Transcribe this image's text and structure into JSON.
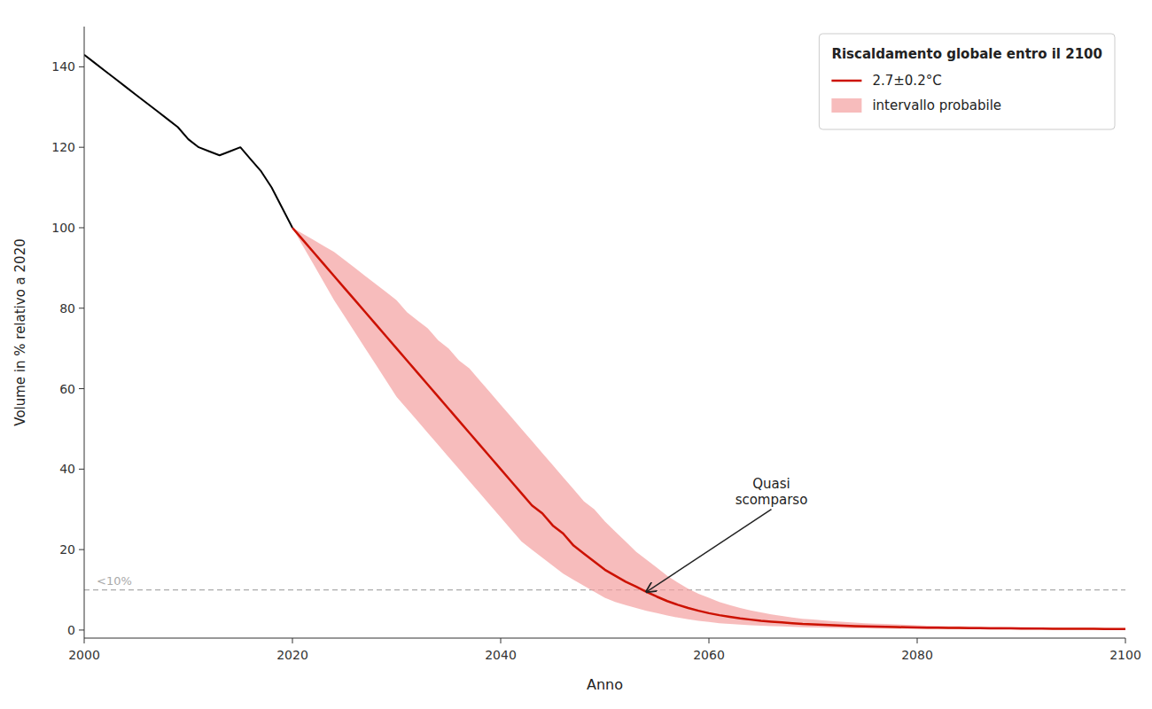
{
  "chart_data": {
    "type": "line",
    "xlabel": "Anno",
    "ylabel": "Volume in % relativo a 2020",
    "legend_title": "Riscaldamento globale entro il 2100",
    "legend": "upper right",
    "grid": false,
    "xlim": [
      2000,
      2100
    ],
    "ylim": [
      -2,
      150
    ],
    "xticks": [
      2000,
      2020,
      2040,
      2060,
      2080,
      2100
    ],
    "yticks": [
      0,
      20,
      40,
      60,
      80,
      100,
      120,
      140
    ],
    "threshold": {
      "value": 10,
      "label": "<10%",
      "color": "#aaaaaa",
      "line_style": "dashed"
    },
    "annotations": [
      {
        "text": "Quasi\nscomparso",
        "x": 2054,
        "y": 9.5,
        "text_x": 2066,
        "text_y": 30
      }
    ],
    "series": [
      {
        "type": "line",
        "color": "#000000",
        "x": [
          2000,
          2001,
          2002,
          2003,
          2004,
          2005,
          2006,
          2007,
          2008,
          2009,
          2010,
          2011,
          2012,
          2013,
          2014,
          2015,
          2016,
          2017,
          2018,
          2019,
          2020
        ],
        "values": [
          143,
          141,
          139,
          137,
          135,
          133,
          131,
          129,
          127,
          125,
          122,
          120,
          119,
          118,
          119,
          120,
          117,
          114,
          110,
          105,
          100
        ]
      },
      {
        "type": "line",
        "name": "2.7±0.2°C",
        "color": "#cc1100",
        "x": [
          2020,
          2021,
          2022,
          2023,
          2024,
          2025,
          2026,
          2027,
          2028,
          2029,
          2030,
          2031,
          2032,
          2033,
          2034,
          2035,
          2036,
          2037,
          2038,
          2039,
          2040,
          2041,
          2042,
          2043,
          2044,
          2045,
          2046,
          2047,
          2048,
          2049,
          2050,
          2051,
          2052,
          2053,
          2054,
          2055,
          2056,
          2057,
          2058,
          2059,
          2060,
          2061,
          2062,
          2063,
          2064,
          2065,
          2066,
          2067,
          2068,
          2069,
          2070,
          2071,
          2072,
          2073,
          2074,
          2075,
          2076,
          2077,
          2078,
          2079,
          2080,
          2081,
          2082,
          2083,
          2084,
          2085,
          2086,
          2087,
          2088,
          2089,
          2090,
          2091,
          2092,
          2093,
          2094,
          2095,
          2096,
          2097,
          2098,
          2099,
          2100
        ],
        "values": [
          100,
          97,
          94,
          91,
          88,
          85,
          82,
          79,
          76,
          73,
          70,
          67,
          64,
          61,
          58,
          55,
          52,
          49,
          46,
          43,
          40,
          37,
          34,
          31,
          29,
          26,
          24,
          21,
          19,
          17,
          15,
          13.5,
          12,
          10.8,
          9.5,
          8.3,
          7.2,
          6.3,
          5.5,
          4.8,
          4.2,
          3.7,
          3.3,
          2.9,
          2.6,
          2.3,
          2.1,
          1.9,
          1.7,
          1.5,
          1.4,
          1.3,
          1.2,
          1.1,
          1.0,
          0.9,
          0.85,
          0.8,
          0.75,
          0.7,
          0.65,
          0.6,
          0.57,
          0.54,
          0.51,
          0.49,
          0.47,
          0.45,
          0.43,
          0.41,
          0.39,
          0.37,
          0.35,
          0.33,
          0.32,
          0.31,
          0.3,
          0.29,
          0.28,
          0.27,
          0.26
        ]
      },
      {
        "type": "band",
        "name": "intervallo probabile",
        "color": "#f4a0a0",
        "x": [
          2020,
          2021,
          2022,
          2023,
          2024,
          2025,
          2026,
          2027,
          2028,
          2029,
          2030,
          2031,
          2032,
          2033,
          2034,
          2035,
          2036,
          2037,
          2038,
          2039,
          2040,
          2041,
          2042,
          2043,
          2044,
          2045,
          2046,
          2047,
          2048,
          2049,
          2050,
          2051,
          2052,
          2053,
          2054,
          2055,
          2056,
          2057,
          2058,
          2059,
          2060,
          2061,
          2062,
          2063,
          2064,
          2065,
          2066,
          2067,
          2068,
          2069,
          2070,
          2071,
          2072,
          2073,
          2074,
          2075,
          2076,
          2077,
          2078,
          2079,
          2080,
          2081,
          2082,
          2083,
          2084,
          2085,
          2086,
          2087,
          2088,
          2089,
          2090,
          2091,
          2092,
          2093,
          2094,
          2095,
          2096,
          2097,
          2098,
          2099,
          2100
        ],
        "upper": [
          100,
          98.5,
          97,
          95.5,
          94,
          92,
          90,
          88,
          86,
          84,
          82,
          79,
          77,
          75,
          72,
          70,
          67,
          65,
          62,
          59,
          56,
          53,
          50,
          47,
          44,
          41,
          38,
          35,
          32,
          30,
          27,
          24.5,
          22,
          19.5,
          17.5,
          15.5,
          13.5,
          11.8,
          10.3,
          9.0,
          8.0,
          7.0,
          6.2,
          5.5,
          4.9,
          4.4,
          3.9,
          3.5,
          3.1,
          2.8,
          2.6,
          2.4,
          2.2,
          2.0,
          1.85,
          1.7,
          1.6,
          1.5,
          1.4,
          1.3,
          1.2,
          1.1,
          1.05,
          1.0,
          0.95,
          0.9,
          0.87,
          0.83,
          0.8,
          0.77,
          0.73,
          0.7,
          0.67,
          0.64,
          0.61,
          0.59,
          0.57,
          0.54,
          0.52,
          0.5,
          0.48
        ],
        "lower": [
          100,
          95.5,
          91,
          86.5,
          82,
          78,
          74,
          70,
          66,
          62,
          58,
          55,
          52,
          49,
          46,
          43,
          40,
          37,
          34,
          31,
          28,
          25,
          22,
          20,
          18,
          16,
          14,
          12.5,
          11,
          9.5,
          8,
          7,
          6.2,
          5.5,
          4.8,
          4.2,
          3.6,
          3.1,
          2.7,
          2.3,
          2.0,
          1.7,
          1.5,
          1.35,
          1.2,
          1.1,
          1.0,
          0.9,
          0.8,
          0.72,
          0.65,
          0.59,
          0.54,
          0.49,
          0.45,
          0.41,
          0.38,
          0.35,
          0.33,
          0.31,
          0.29,
          0.27,
          0.25,
          0.24,
          0.23,
          0.22,
          0.21,
          0.2,
          0.19,
          0.18,
          0.17,
          0.16,
          0.15,
          0.14,
          0.14,
          0.13,
          0.13,
          0.12,
          0.12,
          0.11,
          0.11
        ]
      }
    ]
  }
}
